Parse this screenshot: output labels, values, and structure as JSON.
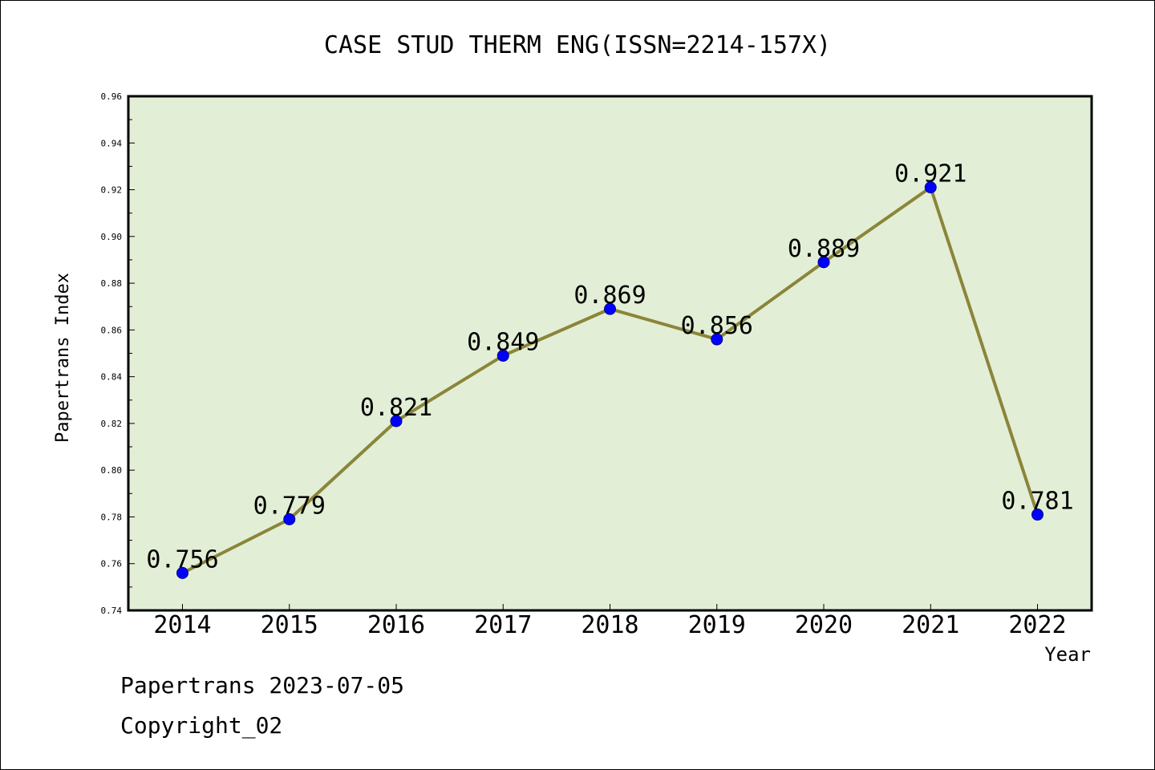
{
  "chart_data": {
    "type": "line",
    "title": "CASE STUD THERM ENG(ISSN=2214-157X)",
    "xlabel": "Year",
    "ylabel": "Papertrans Index",
    "ylim": [
      0.74,
      0.96
    ],
    "yticks": [
      "0.74",
      "0.76",
      "0.78",
      "0.80",
      "0.82",
      "0.84",
      "0.86",
      "0.88",
      "0.90",
      "0.92",
      "0.94",
      "0.96"
    ],
    "categories": [
      "2014",
      "2015",
      "2016",
      "2017",
      "2018",
      "2019",
      "2020",
      "2021",
      "2022"
    ],
    "series": [
      {
        "values": [
          0.756,
          0.779,
          0.821,
          0.849,
          0.869,
          0.856,
          0.889,
          0.921,
          0.781
        ],
        "labels": [
          "0.756",
          "0.779",
          "0.821",
          "0.849",
          "0.869",
          "0.856",
          "0.889",
          "0.921",
          "0.781"
        ]
      }
    ],
    "grid": false,
    "colors": {
      "plot_background": "#e2efd6",
      "line": "#8b853a",
      "marker": "#0000ff"
    }
  },
  "footer": {
    "line1": "Papertrans 2023-07-05",
    "line2": "Copyright_02"
  }
}
